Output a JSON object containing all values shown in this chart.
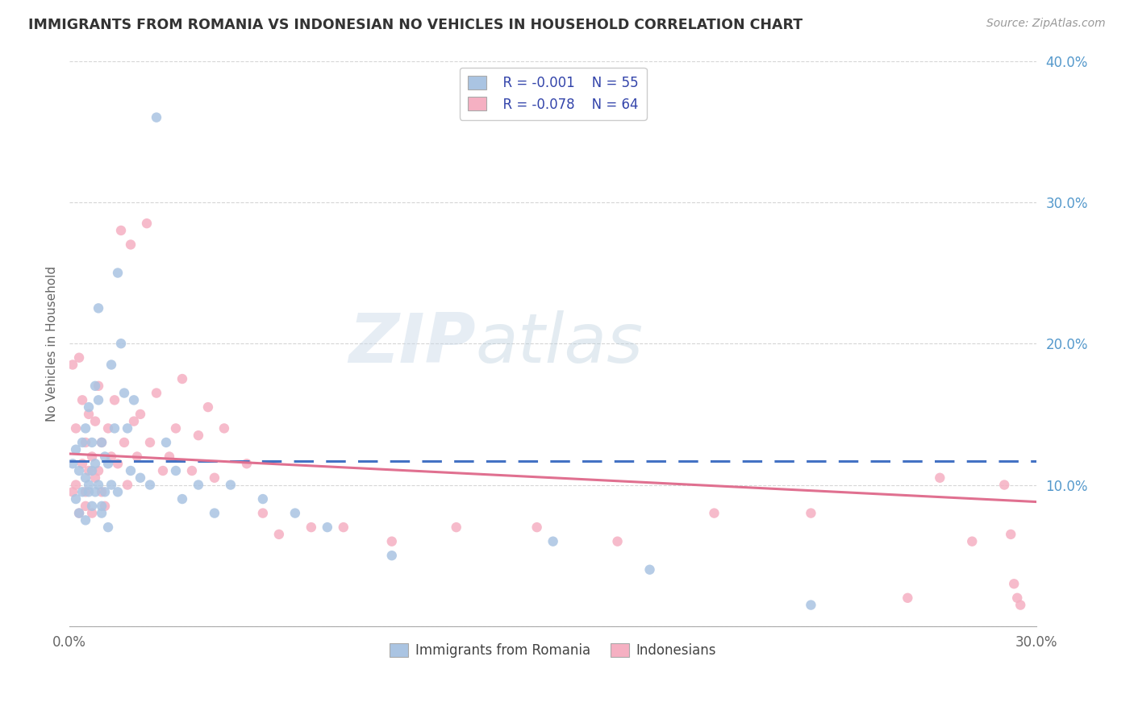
{
  "title": "IMMIGRANTS FROM ROMANIA VS INDONESIAN NO VEHICLES IN HOUSEHOLD CORRELATION CHART",
  "source": "Source: ZipAtlas.com",
  "ylabel": "No Vehicles in Household",
  "xlim": [
    0.0,
    0.3
  ],
  "ylim": [
    0.0,
    0.4
  ],
  "legend_r1": "R = -0.001",
  "legend_n1": "N = 55",
  "legend_r2": "R = -0.078",
  "legend_n2": "N = 64",
  "color_romania": "#aac4e2",
  "color_indonesia": "#f5b0c2",
  "line_color_romania": "#4472c4",
  "line_color_indonesia": "#e07090",
  "watermark_zip": "ZIP",
  "watermark_atlas": "atlas",
  "romania_x": [
    0.001,
    0.002,
    0.002,
    0.003,
    0.003,
    0.004,
    0.004,
    0.005,
    0.005,
    0.005,
    0.006,
    0.006,
    0.006,
    0.007,
    0.007,
    0.007,
    0.008,
    0.008,
    0.008,
    0.009,
    0.009,
    0.009,
    0.01,
    0.01,
    0.01,
    0.011,
    0.011,
    0.012,
    0.012,
    0.013,
    0.013,
    0.014,
    0.015,
    0.015,
    0.016,
    0.017,
    0.018,
    0.019,
    0.02,
    0.022,
    0.025,
    0.027,
    0.03,
    0.033,
    0.035,
    0.04,
    0.045,
    0.05,
    0.06,
    0.07,
    0.08,
    0.1,
    0.15,
    0.18,
    0.23
  ],
  "romania_y": [
    0.115,
    0.09,
    0.125,
    0.08,
    0.11,
    0.095,
    0.13,
    0.14,
    0.075,
    0.105,
    0.155,
    0.095,
    0.1,
    0.13,
    0.085,
    0.11,
    0.115,
    0.17,
    0.095,
    0.1,
    0.225,
    0.16,
    0.08,
    0.13,
    0.085,
    0.095,
    0.12,
    0.07,
    0.115,
    0.1,
    0.185,
    0.14,
    0.25,
    0.095,
    0.2,
    0.165,
    0.14,
    0.11,
    0.16,
    0.105,
    0.1,
    0.36,
    0.13,
    0.11,
    0.09,
    0.1,
    0.08,
    0.1,
    0.09,
    0.08,
    0.07,
    0.05,
    0.06,
    0.04,
    0.015
  ],
  "indonesia_x": [
    0.001,
    0.001,
    0.002,
    0.002,
    0.003,
    0.003,
    0.004,
    0.004,
    0.005,
    0.005,
    0.005,
    0.006,
    0.006,
    0.007,
    0.007,
    0.008,
    0.008,
    0.009,
    0.009,
    0.01,
    0.01,
    0.011,
    0.012,
    0.013,
    0.014,
    0.015,
    0.016,
    0.017,
    0.018,
    0.019,
    0.02,
    0.021,
    0.022,
    0.024,
    0.025,
    0.027,
    0.029,
    0.031,
    0.033,
    0.035,
    0.038,
    0.04,
    0.043,
    0.045,
    0.048,
    0.055,
    0.06,
    0.065,
    0.075,
    0.085,
    0.1,
    0.12,
    0.145,
    0.17,
    0.2,
    0.23,
    0.26,
    0.27,
    0.28,
    0.29,
    0.292,
    0.293,
    0.294,
    0.295
  ],
  "indonesia_y": [
    0.185,
    0.095,
    0.1,
    0.14,
    0.08,
    0.19,
    0.115,
    0.16,
    0.085,
    0.13,
    0.095,
    0.11,
    0.15,
    0.08,
    0.12,
    0.145,
    0.105,
    0.11,
    0.17,
    0.095,
    0.13,
    0.085,
    0.14,
    0.12,
    0.16,
    0.115,
    0.28,
    0.13,
    0.1,
    0.27,
    0.145,
    0.12,
    0.15,
    0.285,
    0.13,
    0.165,
    0.11,
    0.12,
    0.14,
    0.175,
    0.11,
    0.135,
    0.155,
    0.105,
    0.14,
    0.115,
    0.08,
    0.065,
    0.07,
    0.07,
    0.06,
    0.07,
    0.07,
    0.06,
    0.08,
    0.08,
    0.02,
    0.105,
    0.06,
    0.1,
    0.065,
    0.03,
    0.02,
    0.015
  ]
}
